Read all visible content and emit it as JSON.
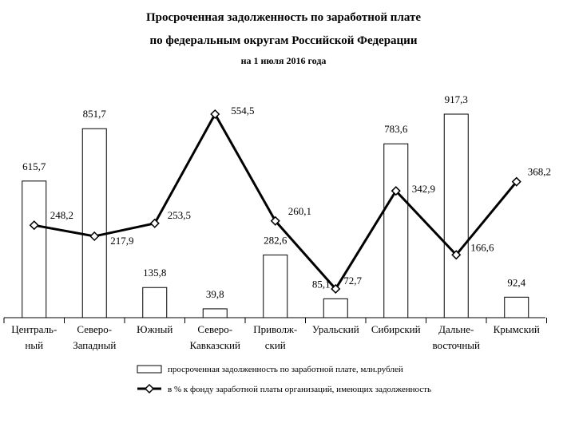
{
  "chart_data": {
    "type": "bar_line",
    "title": "Просроченная задолженность по заработной плате",
    "title_line2": "по федеральным округам Российской Федерации",
    "subtitle": "на 1 июля 2016 года",
    "categories": [
      "Централь-\nный",
      "Северо-\nЗападный",
      "Южный",
      "Северо-\nКавказский",
      "Приволж-\nский",
      "Уральский",
      "Сибирский",
      "Дальне-\nвосточный",
      "Крымский"
    ],
    "series": [
      {
        "name": "просроченная задолженность по заработной плате, млн.рублей",
        "kind": "bar",
        "color": "#000000",
        "values": [
          615.7,
          851.7,
          135.8,
          39.8,
          282.6,
          85.1,
          783.6,
          917.3,
          92.4
        ],
        "value_labels": [
          "615,7",
          "851,7",
          "135,8",
          "39,8",
          "282,6",
          "85,1",
          "783,6",
          "917,3",
          "92,4"
        ]
      },
      {
        "name": "в % к фонду заработной платы организаций, имеющих задолженность",
        "kind": "line",
        "color": "#000000",
        "values": [
          248.2,
          217.9,
          253.5,
          554.5,
          260.1,
          72.7,
          342.9,
          166.6,
          368.2
        ],
        "value_labels": [
          "248,2",
          "217,9",
          "253,5",
          "554,5",
          "260,1",
          "72,7",
          "342,9",
          "166,6",
          "368,2"
        ]
      }
    ]
  }
}
